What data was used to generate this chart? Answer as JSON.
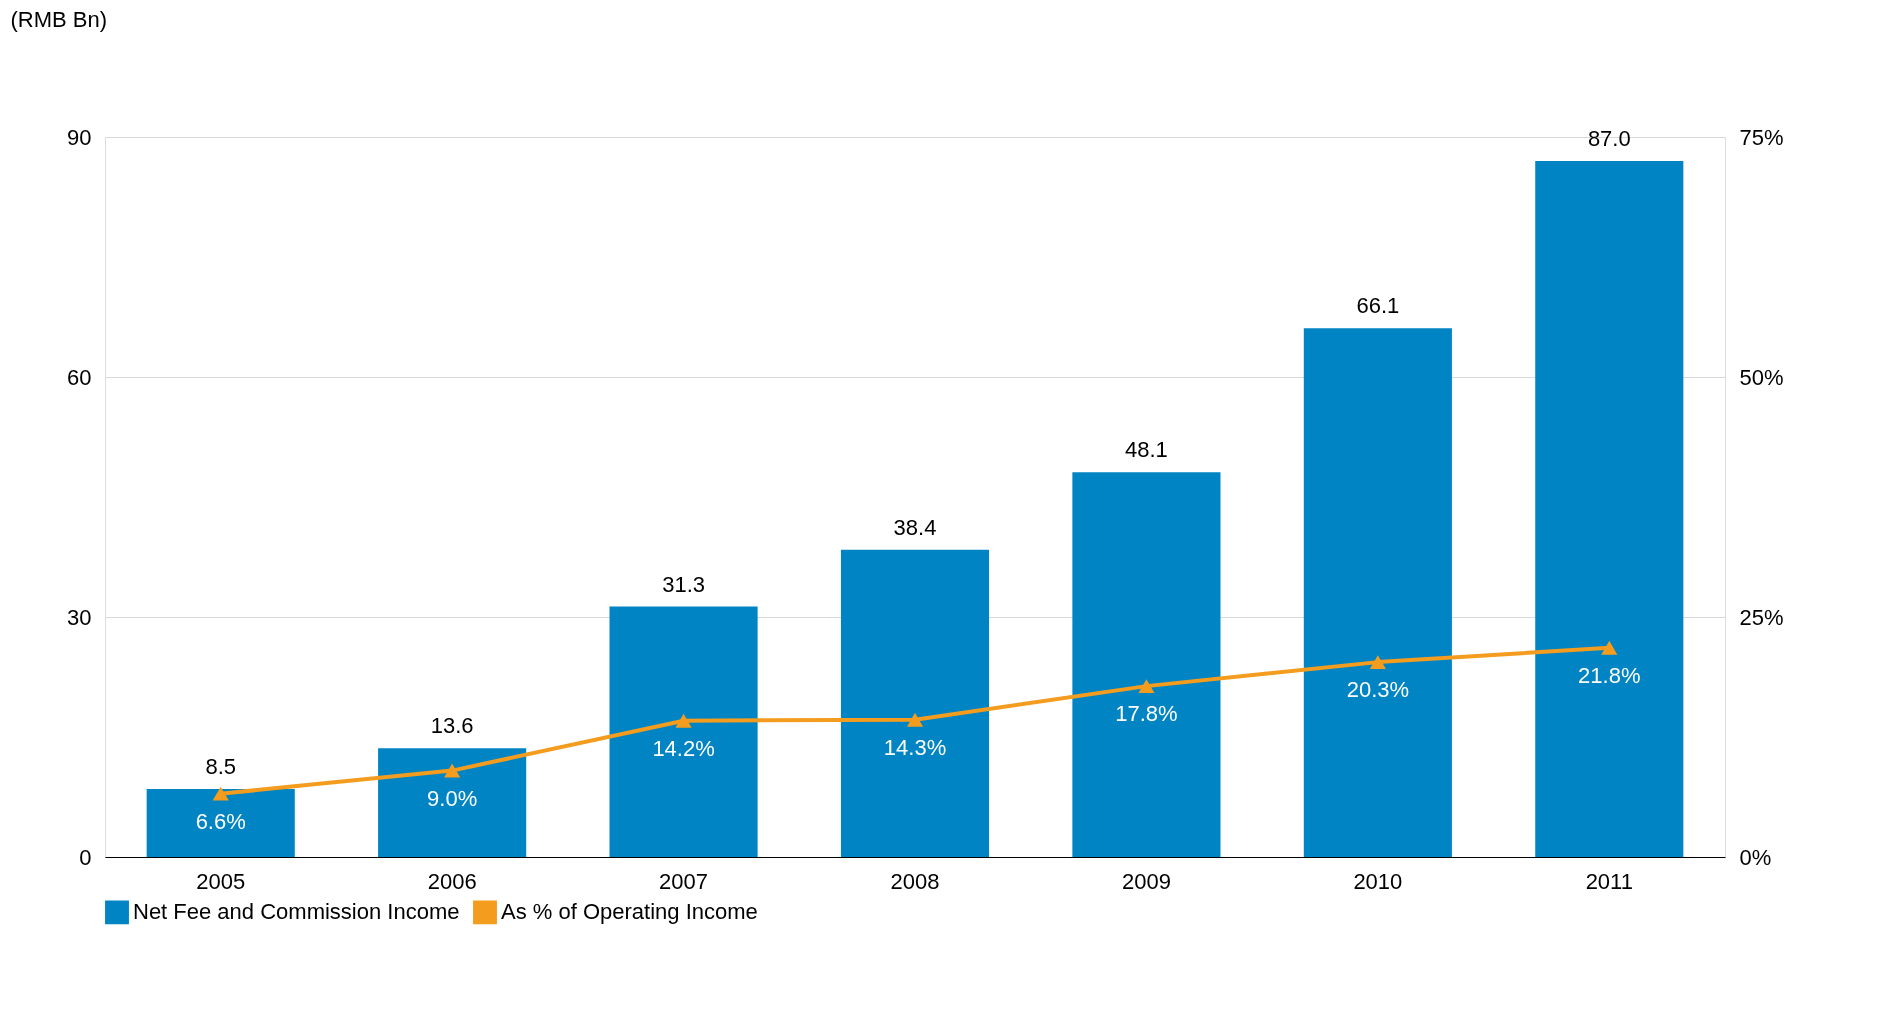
{
  "chart_data": {
    "type": "bar",
    "ylabel": "(RMB Bn)",
    "categories": [
      "2005",
      "2006",
      "2007",
      "2008",
      "2009",
      "2010",
      "2011"
    ],
    "series": [
      {
        "name": "Net Fee and Commission Income",
        "color": "#0084c4",
        "values": [
          8.5,
          13.6,
          31.3,
          38.4,
          48.1,
          66.1,
          87.0
        ],
        "value_labels": [
          "8.5",
          "13.6",
          "31.3",
          "38.4",
          "48.1",
          "66.1",
          "87.0"
        ]
      },
      {
        "name": "As % of Operating Income",
        "type": "line",
        "axis": "y2",
        "color": "#f39c1e",
        "marker": "triangle",
        "values": [
          6.6,
          9.0,
          14.2,
          14.3,
          17.8,
          20.3,
          21.8
        ],
        "value_labels": [
          "6.6%",
          "9.0%",
          "14.2%",
          "14.3%",
          "17.8%",
          "20.3%",
          "21.8%"
        ]
      }
    ],
    "ylim": [
      0,
      90
    ],
    "yticks": [
      0,
      30,
      60,
      90
    ],
    "y2lim": [
      0,
      75
    ],
    "y2ticks": [
      {
        "value": 0,
        "label": "0%"
      },
      {
        "value": 25,
        "label": "25%"
      },
      {
        "value": 50,
        "label": "50%"
      },
      {
        "value": 75,
        "label": "75%"
      }
    ],
    "grid": "y",
    "legend": "bottom"
  }
}
